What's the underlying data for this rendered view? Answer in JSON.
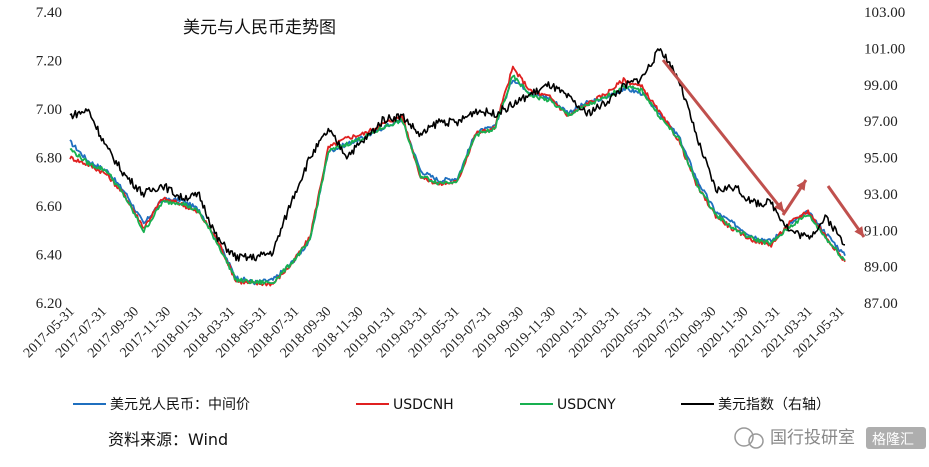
{
  "chart_data": {
    "type": "line",
    "title": "美元与人民币走势图",
    "source": "资料来源：Wind",
    "y_left": {
      "range": [
        6.2,
        7.4
      ],
      "ticks": [
        "6.20",
        "6.40",
        "6.60",
        "6.80",
        "7.00",
        "7.20",
        "7.40"
      ]
    },
    "y_right": {
      "range": [
        87,
        103
      ],
      "ticks": [
        "87.00",
        "89.00",
        "91.00",
        "93.00",
        "95.00",
        "97.00",
        "99.00",
        "101.00",
        "103.00"
      ]
    },
    "x_ticks": [
      "2017-05-31",
      "2017-07-31",
      "2017-09-30",
      "2017-11-30",
      "2018-01-31",
      "2018-03-31",
      "2018-05-31",
      "2018-07-31",
      "2018-09-30",
      "2018-11-30",
      "2019-01-31",
      "2019-03-31",
      "2019-05-31",
      "2019-07-31",
      "2019-09-30",
      "2019-11-30",
      "2020-01-31",
      "2020-03-31",
      "2020-05-31",
      "2020-07-31",
      "2020-09-30",
      "2020-11-30",
      "2021-01-31",
      "2021-03-31",
      "2021-05-31"
    ],
    "series": [
      {
        "name": "美元兑人民币：中间价",
        "color": "#1f6fbf",
        "axis": "left",
        "offset": 0.005,
        "values": [
          6.86,
          6.78,
          6.74,
          6.65,
          6.52,
          6.62,
          6.62,
          6.58,
          6.45,
          6.3,
          6.28,
          6.29,
          6.36,
          6.45,
          6.82,
          6.85,
          6.88,
          6.92,
          6.95,
          6.74,
          6.7,
          6.71,
          6.9,
          6.92,
          7.12,
          7.06,
          7.04,
          6.98,
          7.02,
          7.04,
          7.08,
          7.06,
          6.97,
          6.88,
          6.7,
          6.57,
          6.52,
          6.47,
          6.45,
          6.52,
          6.57,
          6.48,
          6.39
        ]
      },
      {
        "name": "USDCNH",
        "color": "#e02020",
        "axis": "left",
        "offset": 0.0,
        "values": [
          6.8,
          6.77,
          6.73,
          6.64,
          6.51,
          6.63,
          6.61,
          6.57,
          6.46,
          6.29,
          6.28,
          6.28,
          6.36,
          6.47,
          6.84,
          6.88,
          6.9,
          6.94,
          6.97,
          6.72,
          6.69,
          6.7,
          6.9,
          6.92,
          7.17,
          7.07,
          7.05,
          6.97,
          7.02,
          7.06,
          7.12,
          7.09,
          6.98,
          6.87,
          6.68,
          6.56,
          6.5,
          6.46,
          6.44,
          6.53,
          6.58,
          6.47,
          6.37
        ]
      },
      {
        "name": "USDCNY",
        "color": "#18b050",
        "axis": "left",
        "offset": -0.005,
        "values": [
          6.84,
          6.78,
          6.75,
          6.64,
          6.5,
          6.62,
          6.62,
          6.58,
          6.45,
          6.3,
          6.29,
          6.29,
          6.37,
          6.46,
          6.83,
          6.86,
          6.89,
          6.93,
          6.96,
          6.73,
          6.7,
          6.71,
          6.9,
          6.92,
          7.14,
          7.06,
          7.04,
          6.98,
          7.02,
          7.05,
          7.1,
          7.08,
          6.97,
          6.88,
          6.69,
          6.57,
          6.51,
          6.47,
          6.45,
          6.52,
          6.57,
          6.47,
          6.38
        ]
      },
      {
        "name": "美元指数（右轴）",
        "color": "#000000",
        "axis": "right",
        "offset": 0.0,
        "values": [
          97.3,
          97.6,
          95.5,
          94.0,
          93.0,
          93.5,
          92.8,
          92.9,
          90.5,
          89.5,
          89.5,
          89.8,
          92.6,
          95.0,
          96.5,
          95.1,
          96.0,
          97.1,
          97.3,
          96.2,
          97.0,
          96.9,
          97.6,
          97.4,
          97.9,
          98.5,
          99.0,
          98.3,
          97.4,
          98.0,
          98.9,
          99.4,
          101.0,
          99.3,
          96.0,
          93.2,
          93.4,
          92.5,
          92.5,
          91.0,
          90.6,
          91.7,
          90.2
        ]
      }
    ],
    "legend": [
      "美元兑人民币：中间价",
      "USDCNH",
      "USDCNY",
      "美元指数（右轴）"
    ],
    "arrows_color": "#c0504d"
  },
  "watermark": "国行投研室",
  "watermark_badge": "格隆汇"
}
